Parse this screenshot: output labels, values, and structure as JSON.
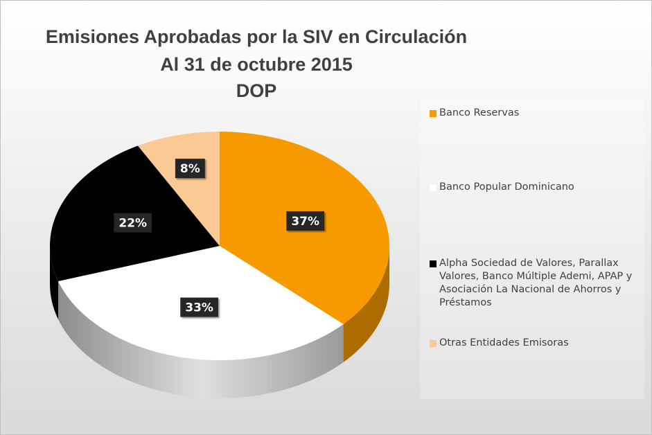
{
  "chart_data": {
    "type": "pie",
    "title": [
      "Emisiones Aprobadas por la SIV en Circulación",
      "Al 31 de octubre 2015",
      "DOP"
    ],
    "categories": [
      "Banco Reservas",
      "Banco Popular Dominicano",
      "Alpha Sociedad de Valores, Parallax Valores, Banco Múltiple Ademi, APAP y Asociación La Nacional de Ahorros y Préstamos",
      "Otras Entidades Emisoras"
    ],
    "values": [
      37,
      33,
      22,
      8
    ],
    "value_labels": [
      "37%",
      "33%",
      "22%",
      "8%"
    ],
    "colors": [
      "#f79a00",
      "#ffffff",
      "#000000",
      "#fbc994"
    ],
    "legend": "right"
  }
}
